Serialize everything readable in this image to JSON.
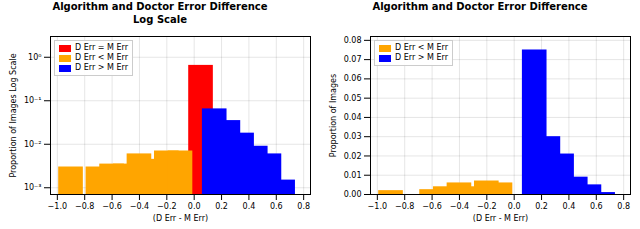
{
  "chart_data": [
    {
      "type": "bar",
      "title": "Algorithm and Doctor Error Difference\nLog Scale",
      "xlabel": "(D Err - M Err)",
      "ylabel": "Proportion of Images Log Scale",
      "xlim": [
        -1.05,
        0.85
      ],
      "ylim": [
        0.0007,
        3.0
      ],
      "xticks": [
        {
          "value": -1.0,
          "label": "−1.0"
        },
        {
          "value": -0.8,
          "label": "−0.8"
        },
        {
          "value": -0.6,
          "label": "−0.6"
        },
        {
          "value": -0.4,
          "label": "−0.4"
        },
        {
          "value": -0.2,
          "label": "−0.2"
        },
        {
          "value": 0.0,
          "label": "0.0"
        },
        0.2,
        0.4,
        0.6,
        0.8
      ],
      "yticks": [
        {
          "value": 0.001,
          "label": "10⁻³"
        },
        {
          "value": 0.01,
          "label": "10⁻²"
        },
        {
          "value": 0.1,
          "label": "10⁻¹"
        },
        {
          "value": 1,
          "label": "10⁰"
        }
      ],
      "log": "y",
      "grid": true,
      "legend": "upper left",
      "series": [
        {
          "name": "D Err = M Err",
          "color": "red",
          "x": [
            0.05
          ],
          "values": [
            0.65
          ]
        },
        {
          "name": "D Err < M Err",
          "color": "orange",
          "x": [
            -0.9,
            -0.7,
            -0.6,
            -0.5,
            -0.4,
            -0.3,
            -0.2,
            -0.1
          ],
          "values": [
            0.003,
            0.003,
            0.0035,
            0.0035,
            0.006,
            0.0045,
            0.007,
            0.007
          ]
        },
        {
          "name": "D Err > M Err",
          "color": "blue",
          "x": [
            0.15,
            0.25,
            0.35,
            0.45,
            0.55,
            0.65
          ],
          "values": [
            0.065,
            0.035,
            0.018,
            0.009,
            0.006,
            0.0015
          ]
        }
      ]
    },
    {
      "type": "bar",
      "title": "Algorithm and Doctor Error Difference",
      "xlabel": "(D Err - M Err)",
      "ylabel": "Proportion of Images",
      "xlim": [
        -1.05,
        0.85
      ],
      "ylim": [
        0.0,
        0.082
      ],
      "xticks": [
        {
          "value": -1.0,
          "label": "−1.0"
        },
        {
          "value": -0.8,
          "label": "−0.8"
        },
        {
          "value": -0.6,
          "label": "−0.6"
        },
        {
          "value": -0.4,
          "label": "−0.4"
        },
        {
          "value": -0.2,
          "label": "−0.2"
        },
        {
          "value": 0.0,
          "label": "0.0"
        },
        0.2,
        0.4,
        0.6,
        0.8
      ],
      "yticks": [
        {
          "value": 0.0,
          "label": "0.00"
        },
        0.01,
        0.02,
        0.03,
        0.04,
        0.05,
        0.06,
        0.07,
        0.08
      ],
      "grid": true,
      "legend": "upper left",
      "series": [
        {
          "name": "D Err < M Err",
          "color": "orange",
          "x": [
            -0.9,
            -0.7,
            -0.6,
            -0.5,
            -0.4,
            -0.3,
            -0.2,
            -0.1
          ],
          "values": [
            0.002,
            0.0,
            0.0025,
            0.004,
            0.006,
            0.004,
            0.007,
            0.006
          ]
        },
        {
          "name": "D Err > M Err",
          "color": "blue",
          "x": [
            0.15,
            0.25,
            0.35,
            0.45,
            0.55,
            0.65
          ],
          "values": [
            0.075,
            0.03,
            0.021,
            0.009,
            0.005,
            0.001
          ]
        }
      ]
    }
  ]
}
